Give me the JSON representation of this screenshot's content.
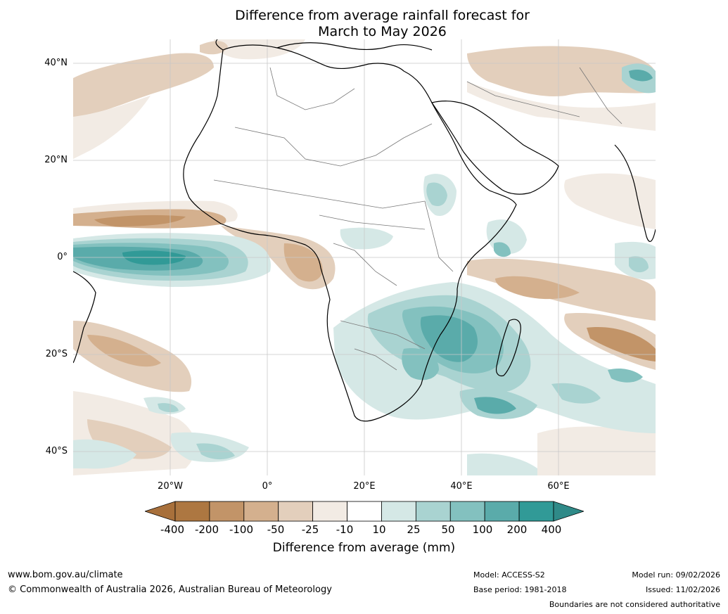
{
  "title": {
    "line1": "Difference from average rainfall forecast for",
    "line2": "March to May 2026"
  },
  "map": {
    "lat_labels": [
      "40°N",
      "20°N",
      "0°",
      "20°S",
      "40°S"
    ],
    "lon_labels": [
      "20°W",
      "0°",
      "20°E",
      "40°E",
      "60°E"
    ],
    "lat_range": [
      -45,
      45
    ],
    "lon_range": [
      -40,
      80
    ]
  },
  "legend": {
    "ticks": [
      "-400",
      "-200",
      "-100",
      "-50",
      "-25",
      "-10",
      "10",
      "25",
      "50",
      "100",
      "200",
      "400"
    ],
    "colors": [
      "#a8703b",
      "#ad7741",
      "#c29468",
      "#d4b08e",
      "#e3cfbc",
      "#f2ebe4",
      "#ffffff",
      "#d5e8e6",
      "#a9d3d1",
      "#83c1bf",
      "#5aabaa",
      "#319a97",
      "#2f8a88"
    ],
    "label": "Difference from average (mm)"
  },
  "footer": {
    "url": "www.bom.gov.au/climate",
    "copyright": "© Commonwealth of Australia 2026, Australian Bureau of Meteorology",
    "model": "Model: ACCESS-S2",
    "base_period": "Base period: 1981-2018",
    "model_run": "Model run: 09/02/2026",
    "issued": "Issued: 11/02/2026",
    "boundaries": "Boundaries are not considered authoritative"
  }
}
